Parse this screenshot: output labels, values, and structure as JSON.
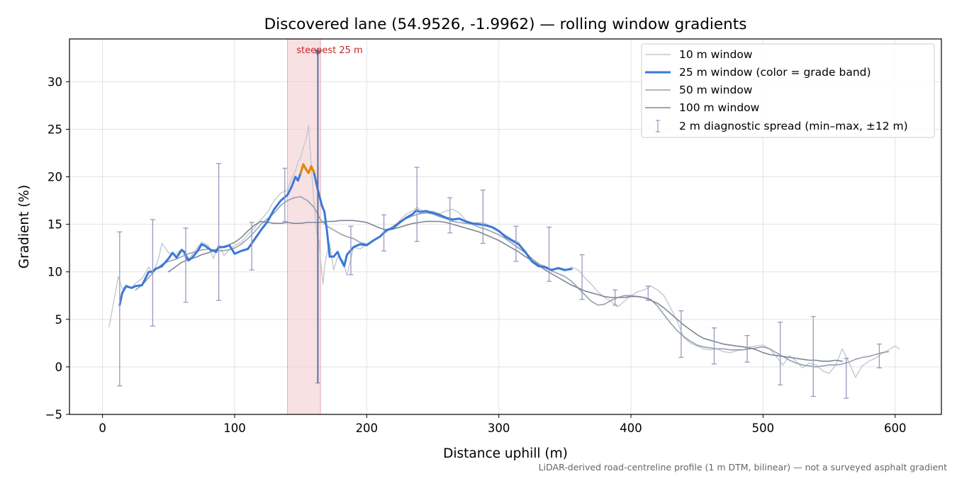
{
  "chart_data": {
    "type": "line",
    "title": "Discovered lane (54.9526, -1.9962) — rolling window gradients",
    "xlabel": "Distance uphill (m)",
    "ylabel": "Gradient (%)",
    "xlim": [
      -25,
      635
    ],
    "ylim": [
      -5,
      34.5
    ],
    "xticks": [
      0,
      100,
      200,
      300,
      400,
      500,
      600
    ],
    "yticks": [
      -5,
      0,
      5,
      10,
      15,
      20,
      25,
      30
    ],
    "grid": true,
    "legend_position": "top-right",
    "footnote": "LiDAR-derived road-centreline profile (1 m DTM, bilinear) — not a surveyed asphalt gradient",
    "highlight": {
      "label": "steepest 25 m",
      "x_start": 140,
      "x_end": 165,
      "marker_x": 163,
      "marker_y": 33,
      "color": "#c62828"
    },
    "colors": {
      "w10": "#c3c8d0",
      "w25": "#3a78d8",
      "w25_steep": "#e08a10",
      "w50": "#97a0b0",
      "w100": "#7f8794",
      "errorbar": "#9c97bf",
      "band": "#f2c9cc"
    },
    "series": [
      {
        "name": "10 m window",
        "x": [
          5,
          8,
          12,
          15,
          18,
          22,
          25,
          30,
          35,
          38,
          42,
          45,
          50,
          55,
          60,
          63,
          66,
          70,
          75,
          80,
          84,
          88,
          92,
          96,
          100,
          105,
          110,
          115,
          120,
          125,
          130,
          135,
          140,
          143,
          146,
          148,
          150,
          152,
          154,
          156,
          158,
          160,
          162,
          164,
          166,
          167,
          168,
          170,
          172,
          175,
          178,
          182,
          185,
          190,
          195,
          200,
          205,
          210,
          215,
          220,
          225,
          230,
          235,
          238,
          240,
          245,
          250,
          255,
          260,
          265,
          270,
          275,
          280,
          285,
          290,
          295,
          300,
          305,
          310,
          315,
          320,
          325,
          330,
          335,
          340,
          345,
          350,
          355,
          360,
          365,
          370,
          375,
          380,
          385,
          390,
          395,
          400,
          405,
          410,
          415,
          420,
          425,
          430,
          435,
          440,
          445,
          450,
          455,
          460,
          465,
          470,
          475,
          480,
          485,
          490,
          495,
          500,
          505,
          510,
          515,
          520,
          525,
          530,
          535,
          540,
          545,
          550,
          555,
          560,
          565,
          570,
          575,
          580,
          585,
          590,
          595,
          600,
          603
        ],
        "values": [
          4.2,
          6.5,
          9.5,
          8.2,
          8.6,
          8.3,
          8.8,
          9.3,
          10.5,
          9.8,
          11.2,
          13,
          12,
          11.8,
          12.4,
          11.3,
          11.5,
          12.2,
          13.1,
          12.8,
          11.4,
          12.9,
          11.7,
          12.3,
          12.8,
          13.1,
          13.9,
          14.6,
          15.5,
          16.3,
          17.5,
          18.3,
          18.6,
          19.8,
          20.6,
          21.6,
          22,
          23.1,
          23.9,
          25.4,
          21.2,
          17.4,
          14.2,
          13.1,
          9.8,
          8.7,
          10.5,
          12,
          13,
          10.2,
          11.6,
          11.2,
          9.6,
          12.6,
          12.4,
          12.9,
          13.2,
          13.7,
          14.2,
          14.6,
          15.4,
          16.1,
          16.4,
          16.8,
          16.6,
          16.2,
          16.4,
          16.1,
          16.4,
          16.6,
          16.2,
          15.4,
          15.1,
          15.2,
          15.1,
          14.6,
          14.2,
          13.9,
          13.4,
          13.1,
          12.1,
          11.4,
          10.9,
          10.6,
          10.2,
          10.3,
          10.1,
          10.5,
          10.2,
          9.4,
          8.7,
          7.9,
          7.3,
          6.9,
          6.3,
          6.9,
          7.5,
          7.9,
          8.1,
          8.5,
          8.1,
          7.5,
          6.2,
          4.8,
          3.1,
          2.5,
          2.2,
          1.9,
          1.8,
          1.9,
          1.6,
          1.5,
          1.7,
          1.8,
          2.1,
          2.2,
          2.3,
          1.9,
          1.1,
          0.2,
          1.2,
          0.6,
          -0.1,
          0.4,
          0.2,
          -0.4,
          -0.7,
          0.2,
          1.9,
          0.5,
          -1.1,
          0.1,
          0.6,
          0.9,
          1.4,
          1.8,
          2.2,
          1.9
        ]
      },
      {
        "name": "25 m window (color = grade band)",
        "x": [
          13,
          15,
          18,
          22,
          25,
          30,
          35,
          38,
          40,
          45,
          50,
          53,
          56,
          60,
          62,
          65,
          68,
          72,
          75,
          78,
          82,
          86,
          88,
          92,
          96,
          100,
          105,
          110,
          115,
          120,
          125,
          130,
          135,
          140,
          143,
          146,
          148,
          150,
          152,
          154,
          156,
          158,
          160,
          163,
          166,
          168,
          170,
          172,
          175,
          178,
          180,
          183,
          185,
          190,
          195,
          200,
          205,
          210,
          215,
          220,
          225,
          230,
          235,
          238,
          240,
          245,
          250,
          255,
          260,
          265,
          270,
          275,
          280,
          285,
          290,
          295,
          300,
          305,
          310,
          315,
          320,
          325,
          330,
          335,
          340,
          345,
          350,
          355
        ],
        "values": [
          6.5,
          7.8,
          8.5,
          8.3,
          8.5,
          8.6,
          10,
          10,
          10.3,
          10.6,
          11.4,
          12,
          11.5,
          12.3,
          12.1,
          11.2,
          11.5,
          12.2,
          12.9,
          12.7,
          12.3,
          12.1,
          12.6,
          12.6,
          12.8,
          11.9,
          12.2,
          12.4,
          13.4,
          14.4,
          15.3,
          16.6,
          17.5,
          18.1,
          18.9,
          20,
          19.6,
          20.4,
          21.3,
          20.8,
          20.4,
          21.1,
          20.5,
          18.6,
          17,
          16.3,
          14.2,
          11.6,
          11.6,
          12.1,
          11.4,
          10.6,
          11.8,
          12.6,
          12.9,
          12.8,
          13.3,
          13.7,
          14.4,
          14.6,
          15.2,
          15.7,
          16.1,
          16.5,
          16.3,
          16.4,
          16.2,
          16,
          15.7,
          15.5,
          15.6,
          15.3,
          15.1,
          15,
          14.9,
          14.7,
          14.3,
          13.7,
          13.3,
          12.9,
          12.1,
          11.1,
          10.6,
          10.5,
          10.2,
          10.4,
          10.2,
          10.3
        ],
        "steep_segment_x": [
          150,
          152,
          154,
          156,
          158,
          160
        ],
        "steep_segment_values": [
          20.4,
          21.3,
          20.8,
          20.4,
          21.1,
          20.5
        ]
      },
      {
        "name": "50 m window",
        "x": [
          25,
          30,
          35,
          40,
          45,
          50,
          55,
          60,
          65,
          70,
          75,
          80,
          85,
          90,
          95,
          100,
          105,
          110,
          115,
          120,
          125,
          130,
          135,
          140,
          145,
          150,
          155,
          160,
          165,
          170,
          175,
          180,
          185,
          190,
          195,
          200,
          205,
          210,
          215,
          220,
          225,
          230,
          235,
          240,
          245,
          250,
          255,
          260,
          265,
          270,
          275,
          280,
          285,
          290,
          295,
          300,
          305,
          310,
          315,
          320,
          325,
          330,
          335,
          340,
          345,
          350,
          355,
          360,
          365,
          370,
          375,
          380,
          385,
          390,
          395,
          400,
          405,
          410,
          415,
          420,
          425,
          430,
          435,
          440,
          445,
          450,
          455,
          460,
          465,
          470,
          475,
          480,
          485,
          490,
          495,
          500,
          505,
          510,
          515,
          520,
          525,
          530,
          535,
          540,
          545,
          550,
          555,
          560,
          565,
          570,
          575,
          580,
          585,
          590,
          595
        ],
        "values": [
          8.1,
          8.6,
          9.4,
          10.2,
          10.8,
          11.1,
          11.3,
          11.6,
          11.9,
          12.1,
          12.3,
          12.4,
          12.3,
          12.2,
          12.3,
          12.5,
          12.9,
          13.5,
          14.2,
          15,
          15.6,
          16.2,
          17,
          17.5,
          17.8,
          17.9,
          17.5,
          16.8,
          15.5,
          14.8,
          14.4,
          14,
          13.7,
          13.5,
          13.1,
          12.9,
          13.3,
          13.7,
          14.3,
          14.8,
          15.3,
          15.6,
          15.9,
          16.1,
          16.2,
          16.1,
          15.8,
          15.6,
          15.3,
          15.2,
          15.1,
          15,
          14.7,
          14.5,
          14.2,
          13.9,
          13.5,
          13,
          12.5,
          12,
          11.4,
          10.8,
          10.4,
          10.1,
          9.8,
          9.5,
          9,
          8.3,
          7.6,
          6.9,
          6.5,
          6.6,
          7,
          7.3,
          7.5,
          7.5,
          7.4,
          7.3,
          7.1,
          6.4,
          5.5,
          4.6,
          3.8,
          3.2,
          2.7,
          2.3,
          2.1,
          2,
          1.9,
          1.9,
          1.8,
          1.8,
          1.8,
          1.9,
          2,
          2.1,
          1.9,
          1.5,
          1.1,
          0.7,
          0.4,
          0.2,
          0.1,
          0,
          0.1,
          0.2,
          0.2,
          0.3,
          0.5,
          0.8,
          1,
          1.1,
          1.3,
          1.5,
          1.6
        ]
      },
      {
        "name": "100 m window",
        "x": [
          50,
          55,
          60,
          65,
          70,
          75,
          80,
          85,
          90,
          95,
          100,
          105,
          110,
          115,
          120,
          125,
          130,
          135,
          140,
          145,
          150,
          155,
          160,
          165,
          170,
          175,
          180,
          185,
          190,
          195,
          200,
          205,
          210,
          215,
          220,
          225,
          230,
          235,
          240,
          245,
          250,
          255,
          260,
          265,
          270,
          275,
          280,
          285,
          290,
          295,
          300,
          305,
          310,
          315,
          320,
          325,
          330,
          335,
          340,
          345,
          350,
          355,
          360,
          365,
          370,
          375,
          380,
          385,
          390,
          395,
          400,
          405,
          410,
          415,
          420,
          425,
          430,
          435,
          440,
          445,
          450,
          455,
          460,
          465,
          470,
          475,
          480,
          485,
          490,
          495,
          500,
          505,
          510,
          515,
          520,
          525,
          530,
          535,
          540,
          545,
          550,
          555,
          560
        ],
        "values": [
          10,
          10.5,
          11,
          11.3,
          11.5,
          11.8,
          12,
          12.3,
          12.6,
          12.8,
          13.1,
          13.6,
          14.3,
          14.9,
          15.3,
          15.2,
          15.1,
          15.1,
          15.2,
          15.1,
          15.1,
          15.2,
          15.2,
          15.2,
          15.3,
          15.3,
          15.4,
          15.4,
          15.4,
          15.3,
          15.2,
          14.9,
          14.6,
          14.4,
          14.5,
          14.7,
          14.9,
          15.1,
          15.2,
          15.3,
          15.3,
          15.3,
          15.2,
          15,
          14.8,
          14.6,
          14.4,
          14.2,
          13.9,
          13.6,
          13.3,
          12.9,
          12.5,
          12.1,
          11.6,
          11.2,
          10.7,
          10.2,
          9.8,
          9.4,
          9,
          8.6,
          8.3,
          8,
          7.8,
          7.6,
          7.4,
          7.3,
          7.3,
          7.3,
          7.4,
          7.4,
          7.3,
          7,
          6.7,
          6.2,
          5.6,
          5,
          4.4,
          3.9,
          3.4,
          3,
          2.8,
          2.6,
          2.4,
          2.3,
          2.2,
          2.1,
          2,
          1.8,
          1.5,
          1.3,
          1.2,
          1.1,
          1,
          0.9,
          0.8,
          0.7,
          0.7,
          0.6,
          0.6,
          0.7,
          0.6
        ]
      },
      {
        "name": "2 m diagnostic spread (min–max, ±12 m)",
        "type": "errorbar",
        "x": [
          13,
          38,
          63,
          88,
          113,
          138,
          163,
          188,
          213,
          238,
          263,
          288,
          313,
          338,
          363,
          388,
          413,
          438,
          463,
          488,
          513,
          538,
          563,
          588
        ],
        "mid": [
          6.5,
          10,
          11.7,
          12.6,
          12.6,
          17.2,
          33,
          11.4,
          14.1,
          16.5,
          15.9,
          15.2,
          12.9,
          11.3,
          9.6,
          7.3,
          7.6,
          3.9,
          2.1,
          1.8,
          1.6,
          1.1,
          -0.3,
          1.2
        ],
        "low": [
          -2,
          4.3,
          6.8,
          7,
          10.2,
          15.3,
          -1.7,
          9.7,
          12.2,
          13.2,
          14.1,
          13,
          11.1,
          9,
          7.1,
          6.5,
          7,
          1,
          0.3,
          0.5,
          -1.9,
          -3.1,
          -3.3,
          -0.1
        ],
        "high": [
          14.2,
          15.5,
          14.6,
          21.4,
          15.2,
          20.9,
          33,
          14.8,
          16,
          21,
          17.8,
          18.6,
          14.8,
          14.7,
          11.8,
          8.1,
          8.5,
          5.9,
          4.1,
          3.3,
          4.7,
          5.3,
          0.9,
          2.4
        ]
      }
    ]
  }
}
